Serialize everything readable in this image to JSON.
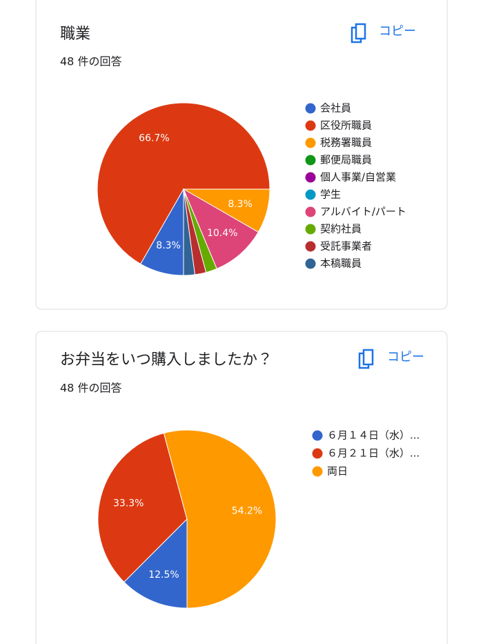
{
  "chart_data": [
    {
      "type": "pie",
      "title": "職業",
      "subtitle": "48 件の回答",
      "categories": [
        "会社員",
        "区役所職員",
        "税務署職員",
        "郵便局職員",
        "個人事業/自営業",
        "学生",
        "アルバイト/パート",
        "契約社員",
        "受託事業者",
        "本稿職員"
      ],
      "values": [
        8.3,
        66.7,
        8.3,
        0,
        0,
        0,
        10.4,
        2.1,
        2.1,
        2.1
      ],
      "value_labels": [
        "8.3%",
        "66.7%",
        "8.3%",
        null,
        null,
        null,
        "10.4%",
        null,
        null,
        null
      ],
      "colors": [
        "#3366cc",
        "#dc3912",
        "#ff9900",
        "#109618",
        "#990099",
        "#0099c6",
        "#dd4477",
        "#66aa00",
        "#b82e2e",
        "#316395"
      ]
    },
    {
      "type": "pie",
      "title": "お弁当をいつ購入しましたか？",
      "subtitle": "48 件の回答",
      "categories": [
        "６月１４日（水）...",
        "６月２１日（水）...",
        "両日"
      ],
      "values": [
        12.5,
        33.3,
        54.2
      ],
      "value_labels": [
        "12.5%",
        "33.3%",
        "54.2%"
      ],
      "colors": [
        "#3366cc",
        "#dc3912",
        "#ff9900"
      ]
    }
  ],
  "copy_buttons": [
    "コピー",
    "コピー"
  ]
}
